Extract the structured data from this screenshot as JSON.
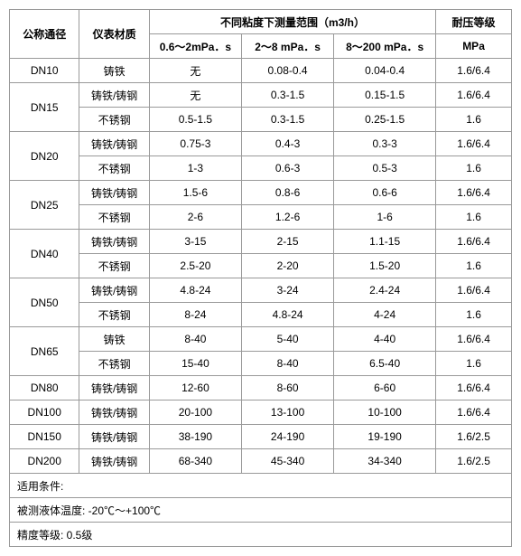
{
  "headers": {
    "nominal_diameter": "公称通径",
    "material": "仪表材质",
    "viscosity_range": "不同粘度下测量范围（m3/h）",
    "pressure_rating": "耐压等级",
    "visc1": "0.6～2mPa．s",
    "visc2": "2～8 mPa．s",
    "visc3": "8～200 mPa．s",
    "pressure_unit": "MPa"
  },
  "materials": {
    "cast_iron": "铸铁",
    "cast_iron_steel": "铸铁/铸钢",
    "stainless": "不锈钢"
  },
  "values": {
    "none": "无"
  },
  "rows": [
    {
      "dn": "DN10",
      "mat": "铸铁",
      "v1": "无",
      "v2": "0.08-0.4",
      "v3": "0.04-0.4",
      "p": "1.6/6.4"
    },
    {
      "dn": "DN15",
      "mat": "铸铁/铸钢",
      "v1": "无",
      "v2": "0.3-1.5",
      "v3": "0.15-1.5",
      "p": "1.6/6.4"
    },
    {
      "dn": "",
      "mat": "不锈钢",
      "v1": "0.5-1.5",
      "v2": "0.3-1.5",
      "v3": "0.25-1.5",
      "p": "1.6"
    },
    {
      "dn": "DN20",
      "mat": "铸铁/铸钢",
      "v1": "0.75-3",
      "v2": "0.4-3",
      "v3": "0.3-3",
      "p": "1.6/6.4"
    },
    {
      "dn": "",
      "mat": "不锈钢",
      "v1": "1-3",
      "v2": "0.6-3",
      "v3": "0.5-3",
      "p": "1.6"
    },
    {
      "dn": "DN25",
      "mat": "铸铁/铸钢",
      "v1": "1.5-6",
      "v2": "0.8-6",
      "v3": "0.6-6",
      "p": "1.6/6.4"
    },
    {
      "dn": "",
      "mat": "不锈钢",
      "v1": "2-6",
      "v2": "1.2-6",
      "v3": "1-6",
      "p": "1.6"
    },
    {
      "dn": "DN40",
      "mat": "铸铁/铸钢",
      "v1": "3-15",
      "v2": "2-15",
      "v3": "1.1-15",
      "p": "1.6/6.4"
    },
    {
      "dn": "",
      "mat": "不锈钢",
      "v1": "2.5-20",
      "v2": "2-20",
      "v3": "1.5-20",
      "p": "1.6"
    },
    {
      "dn": "DN50",
      "mat": "铸铁/铸钢",
      "v1": "4.8-24",
      "v2": "3-24",
      "v3": "2.4-24",
      "p": "1.6/6.4"
    },
    {
      "dn": "",
      "mat": "不锈钢",
      "v1": "8-24",
      "v2": "4.8-24",
      "v3": "4-24",
      "p": "1.6"
    },
    {
      "dn": "DN65",
      "mat": "铸铁",
      "v1": "8-40",
      "v2": "5-40",
      "v3": "4-40",
      "p": "1.6/6.4"
    },
    {
      "dn": "",
      "mat": "不锈钢",
      "v1": "15-40",
      "v2": "8-40",
      "v3": "6.5-40",
      "p": "1.6"
    },
    {
      "dn": "DN80",
      "mat": "铸铁/铸钢",
      "v1": "12-60",
      "v2": "8-60",
      "v3": "6-60",
      "p": "1.6/6.4"
    },
    {
      "dn": "DN100",
      "mat": "铸铁/铸钢",
      "v1": "20-100",
      "v2": "13-100",
      "v3": "10-100",
      "p": "1.6/6.4"
    },
    {
      "dn": "DN150",
      "mat": "铸铁/铸钢",
      "v1": "38-190",
      "v2": "24-190",
      "v3": "19-190",
      "p": "1.6/2.5"
    },
    {
      "dn": "DN200",
      "mat": "铸铁/铸钢",
      "v1": "68-340",
      "v2": "45-340",
      "v3": "34-340",
      "p": "1.6/2.5"
    }
  ],
  "notes": {
    "conditions": "适用条件:",
    "temperature": "被测液体温度:  -20℃～+100℃",
    "accuracy": "精度等级:  0.5级"
  }
}
